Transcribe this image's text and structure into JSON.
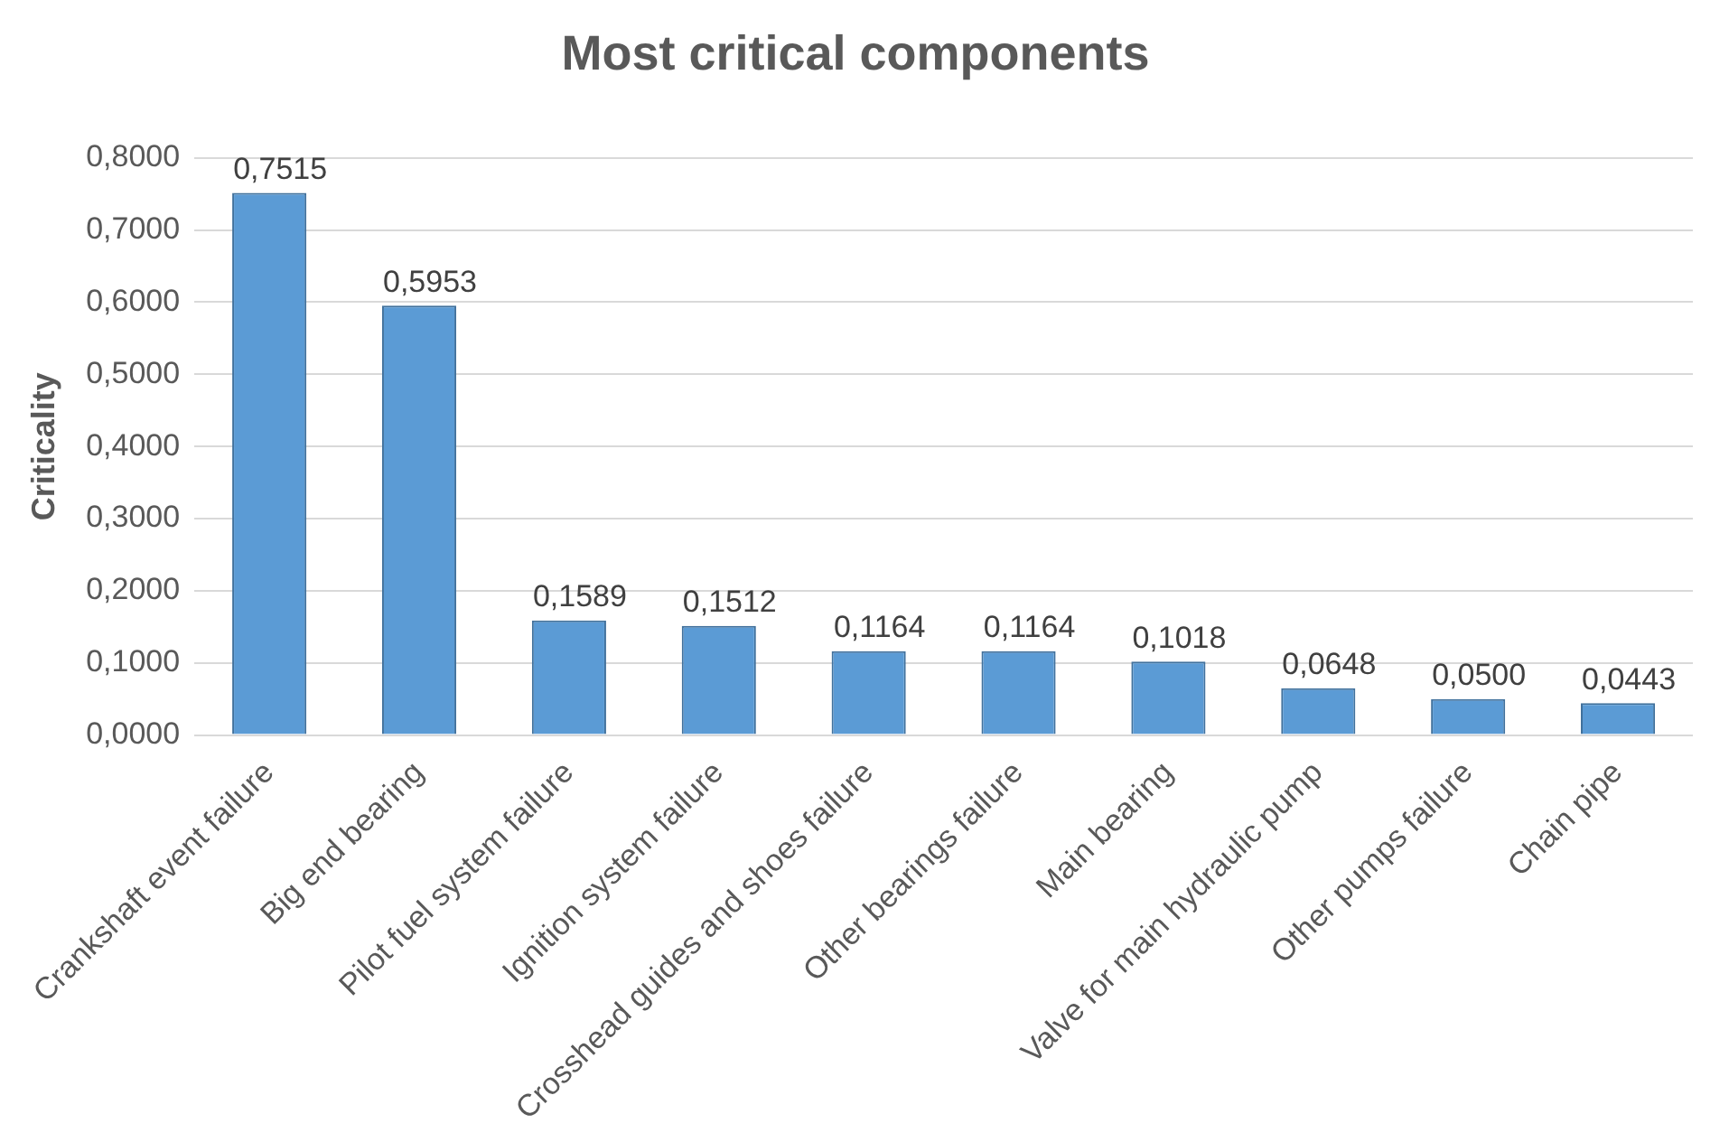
{
  "chart_data": {
    "type": "bar",
    "title": "Most critical components",
    "ylabel": "Criticality",
    "categories": [
      "Crankshaft event failure",
      "Big end bearing",
      "Pilot fuel system failure",
      "Ignition system failure",
      "Crosshead guides and shoes failure",
      "Other bearings failure",
      "Main bearing",
      "Valve for main hydraulic pump",
      "Other pumps failure",
      "Chain pipe"
    ],
    "values": [
      0.7515,
      0.5953,
      0.1589,
      0.1512,
      0.1164,
      0.1164,
      0.1018,
      0.0648,
      0.05,
      0.0443
    ],
    "value_labels": [
      "0,7515",
      "0,5953",
      "0,1589",
      "0,1512",
      "0,1164",
      "0,1164",
      "0,1018",
      "0,0648",
      "0,0500",
      "0,0443"
    ],
    "color": "#5b9bd5",
    "ylim": [
      0,
      0.8
    ],
    "yticks": [
      {
        "value": 0,
        "label": "0,0000"
      },
      {
        "value": 0.1,
        "label": "0,1000"
      },
      {
        "value": 0.2,
        "label": "0,2000"
      },
      {
        "value": 0.3,
        "label": "0,3000"
      },
      {
        "value": 0.4,
        "label": "0,4000"
      },
      {
        "value": 0.5,
        "label": "0,5000"
      },
      {
        "value": 0.6,
        "label": "0,6000"
      },
      {
        "value": 0.7,
        "label": "0,7000"
      },
      {
        "value": 0.8,
        "label": "0,8000"
      }
    ],
    "grid": "y",
    "legend": false
  }
}
